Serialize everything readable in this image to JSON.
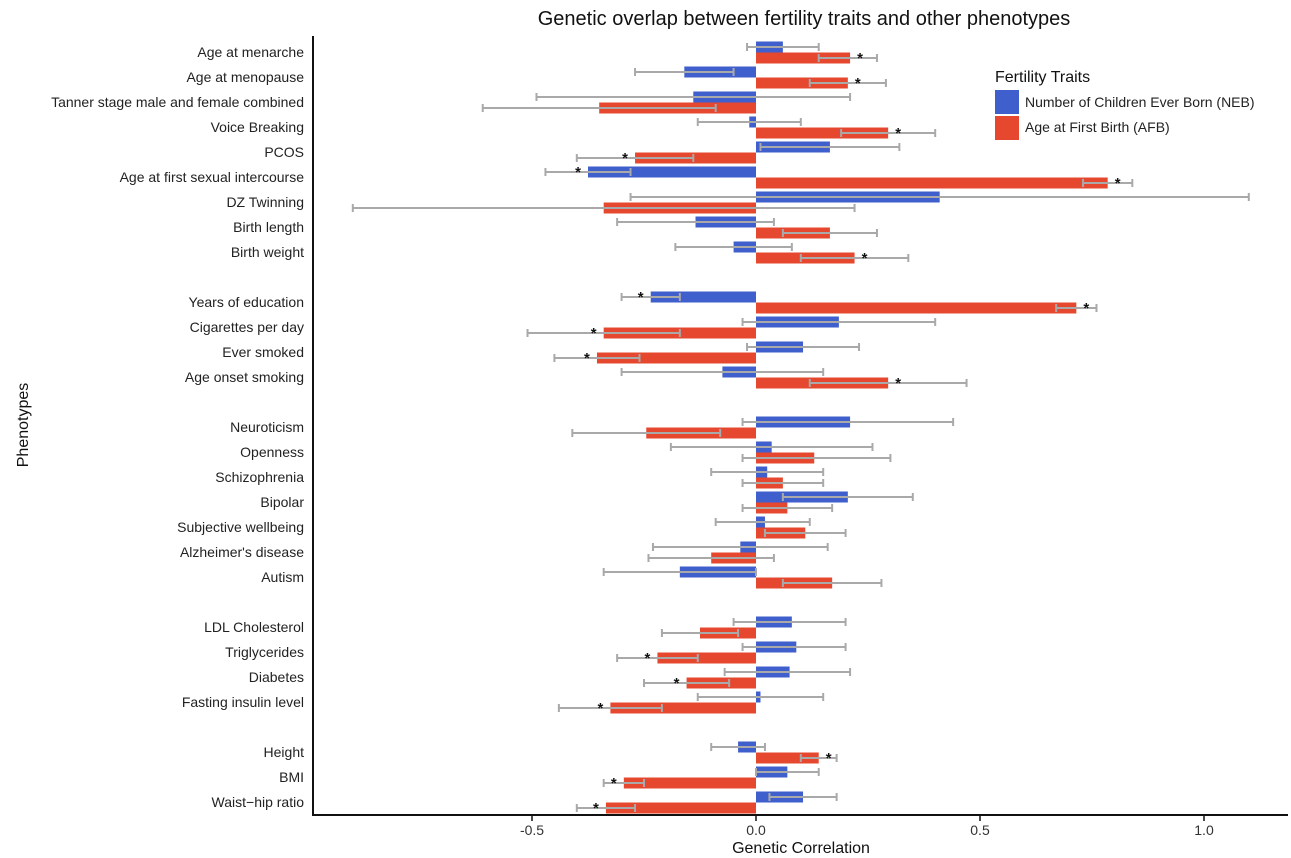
{
  "chart_data": {
    "type": "bar",
    "orientation": "horizontal",
    "title": "Genetic overlap between fertility traits and other phenotypes",
    "xlabel": "Genetic Correlation",
    "ylabel": "Phenotypes",
    "xlim": [
      -1.0,
      1.2
    ],
    "xticks": [
      -0.5,
      0.0,
      0.5,
      1.0
    ],
    "xtick_labels": [
      "-0.5",
      "0.0",
      "0.5",
      "1.0"
    ],
    "legend": {
      "title": "Fertility Traits",
      "placement": "top-right",
      "entries": [
        {
          "label": "Number of Children Ever Born (NEB)",
          "color": "#3f5fcc"
        },
        {
          "label": "Age at First Birth (AFB)",
          "color": "#e5482f"
        }
      ]
    },
    "colors": {
      "NEB": "#3f5fcc",
      "AFB": "#e5482f",
      "errorbar": "#a9a9a9"
    },
    "groups": [
      [
        {
          "label": "Age at menarche",
          "neb": {
            "v": 0.06,
            "lo": -0.02,
            "hi": 0.14,
            "sig": false
          },
          "afb": {
            "v": 0.21,
            "lo": 0.14,
            "hi": 0.27,
            "sig": true
          }
        },
        {
          "label": "Age at menopause",
          "neb": {
            "v": -0.16,
            "lo": -0.27,
            "hi": -0.05,
            "sig": false
          },
          "afb": {
            "v": 0.205,
            "lo": 0.12,
            "hi": 0.29,
            "sig": true
          }
        },
        {
          "label": "Tanner stage male and female combined",
          "neb": {
            "v": -0.14,
            "lo": -0.49,
            "hi": 0.21,
            "sig": false
          },
          "afb": {
            "v": -0.35,
            "lo": -0.61,
            "hi": -0.09,
            "sig": false
          }
        },
        {
          "label": "Voice Breaking",
          "neb": {
            "v": -0.015,
            "lo": -0.13,
            "hi": 0.1,
            "sig": false
          },
          "afb": {
            "v": 0.295,
            "lo": 0.19,
            "hi": 0.4,
            "sig": true
          }
        },
        {
          "label": "PCOS",
          "neb": {
            "v": 0.165,
            "lo": 0.01,
            "hi": 0.32,
            "sig": false
          },
          "afb": {
            "v": -0.27,
            "lo": -0.4,
            "hi": -0.14,
            "sig": true
          }
        },
        {
          "label": "Age at first sexual intercourse",
          "neb": {
            "v": -0.375,
            "lo": -0.47,
            "hi": -0.28,
            "sig": true
          },
          "afb": {
            "v": 0.785,
            "lo": 0.73,
            "hi": 0.84,
            "sig": true
          }
        },
        {
          "label": "DZ Twinning",
          "neb": {
            "v": 0.41,
            "lo": -0.28,
            "hi": 1.1,
            "sig": false
          },
          "afb": {
            "v": -0.34,
            "lo": -0.9,
            "hi": 0.22,
            "sig": false
          }
        },
        {
          "label": "Birth length",
          "neb": {
            "v": -0.135,
            "lo": -0.31,
            "hi": 0.04,
            "sig": false
          },
          "afb": {
            "v": 0.165,
            "lo": 0.06,
            "hi": 0.27,
            "sig": false
          }
        },
        {
          "label": "Birth weight",
          "neb": {
            "v": -0.05,
            "lo": -0.18,
            "hi": 0.08,
            "sig": false
          },
          "afb": {
            "v": 0.22,
            "lo": 0.1,
            "hi": 0.34,
            "sig": true
          }
        }
      ],
      [
        {
          "label": "Years of education",
          "neb": {
            "v": -0.235,
            "lo": -0.3,
            "hi": -0.17,
            "sig": true
          },
          "afb": {
            "v": 0.715,
            "lo": 0.67,
            "hi": 0.76,
            "sig": true
          }
        },
        {
          "label": "Cigarettes per day",
          "neb": {
            "v": 0.185,
            "lo": -0.03,
            "hi": 0.4,
            "sig": false
          },
          "afb": {
            "v": -0.34,
            "lo": -0.51,
            "hi": -0.17,
            "sig": true
          }
        },
        {
          "label": "Ever smoked",
          "neb": {
            "v": 0.105,
            "lo": -0.02,
            "hi": 0.23,
            "sig": false
          },
          "afb": {
            "v": -0.355,
            "lo": -0.45,
            "hi": -0.26,
            "sig": true
          }
        },
        {
          "label": "Age onset smoking",
          "neb": {
            "v": -0.075,
            "lo": -0.3,
            "hi": 0.15,
            "sig": false
          },
          "afb": {
            "v": 0.295,
            "lo": 0.12,
            "hi": 0.47,
            "sig": true
          }
        }
      ],
      [
        {
          "label": "Neuroticism",
          "neb": {
            "v": 0.21,
            "lo": -0.03,
            "hi": 0.44,
            "sig": false
          },
          "afb": {
            "v": -0.245,
            "lo": -0.41,
            "hi": -0.08,
            "sig": false
          }
        },
        {
          "label": "Openness",
          "neb": {
            "v": 0.035,
            "lo": -0.19,
            "hi": 0.26,
            "sig": false
          },
          "afb": {
            "v": 0.13,
            "lo": -0.03,
            "hi": 0.3,
            "sig": false
          }
        },
        {
          "label": "Schizophrenia",
          "neb": {
            "v": 0.025,
            "lo": -0.1,
            "hi": 0.15,
            "sig": false
          },
          "afb": {
            "v": 0.06,
            "lo": -0.03,
            "hi": 0.15,
            "sig": false
          }
        },
        {
          "label": "Bipolar",
          "neb": {
            "v": 0.205,
            "lo": 0.06,
            "hi": 0.35,
            "sig": false
          },
          "afb": {
            "v": 0.07,
            "lo": -0.03,
            "hi": 0.17,
            "sig": false
          }
        },
        {
          "label": "Subjective wellbeing",
          "neb": {
            "v": 0.02,
            "lo": -0.09,
            "hi": 0.12,
            "sig": false
          },
          "afb": {
            "v": 0.11,
            "lo": 0.02,
            "hi": 0.2,
            "sig": false
          }
        },
        {
          "label": "Alzheimer's disease",
          "neb": {
            "v": -0.035,
            "lo": -0.23,
            "hi": 0.16,
            "sig": false
          },
          "afb": {
            "v": -0.1,
            "lo": -0.24,
            "hi": 0.04,
            "sig": false
          }
        },
        {
          "label": "Autism",
          "neb": {
            "v": -0.17,
            "lo": -0.34,
            "hi": 0.0,
            "sig": false
          },
          "afb": {
            "v": 0.17,
            "lo": 0.06,
            "hi": 0.28,
            "sig": false
          }
        }
      ],
      [
        {
          "label": "LDL Cholesterol",
          "neb": {
            "v": 0.08,
            "lo": -0.05,
            "hi": 0.2,
            "sig": false
          },
          "afb": {
            "v": -0.125,
            "lo": -0.21,
            "hi": -0.04,
            "sig": false
          }
        },
        {
          "label": "Triglycerides",
          "neb": {
            "v": 0.09,
            "lo": -0.03,
            "hi": 0.2,
            "sig": false
          },
          "afb": {
            "v": -0.22,
            "lo": -0.31,
            "hi": -0.13,
            "sig": true
          }
        },
        {
          "label": "Diabetes",
          "neb": {
            "v": 0.075,
            "lo": -0.07,
            "hi": 0.21,
            "sig": false
          },
          "afb": {
            "v": -0.155,
            "lo": -0.25,
            "hi": -0.06,
            "sig": true
          }
        },
        {
          "label": "Fasting insulin level",
          "neb": {
            "v": 0.01,
            "lo": -0.13,
            "hi": 0.15,
            "sig": false
          },
          "afb": {
            "v": -0.325,
            "lo": -0.44,
            "hi": -0.21,
            "sig": true
          }
        }
      ],
      [
        {
          "label": "Height",
          "neb": {
            "v": -0.04,
            "lo": -0.1,
            "hi": 0.02,
            "sig": false
          },
          "afb": {
            "v": 0.14,
            "lo": 0.1,
            "hi": 0.18,
            "sig": true
          }
        },
        {
          "label": "BMI",
          "neb": {
            "v": 0.07,
            "lo": 0.0,
            "hi": 0.14,
            "sig": false
          },
          "afb": {
            "v": -0.295,
            "lo": -0.34,
            "hi": -0.25,
            "sig": true
          }
        },
        {
          "label": "Waist−hip ratio",
          "neb": {
            "v": 0.105,
            "lo": 0.03,
            "hi": 0.18,
            "sig": false
          },
          "afb": {
            "v": -0.335,
            "lo": -0.4,
            "hi": -0.27,
            "sig": true
          }
        }
      ]
    ],
    "significance_marker": "*"
  }
}
